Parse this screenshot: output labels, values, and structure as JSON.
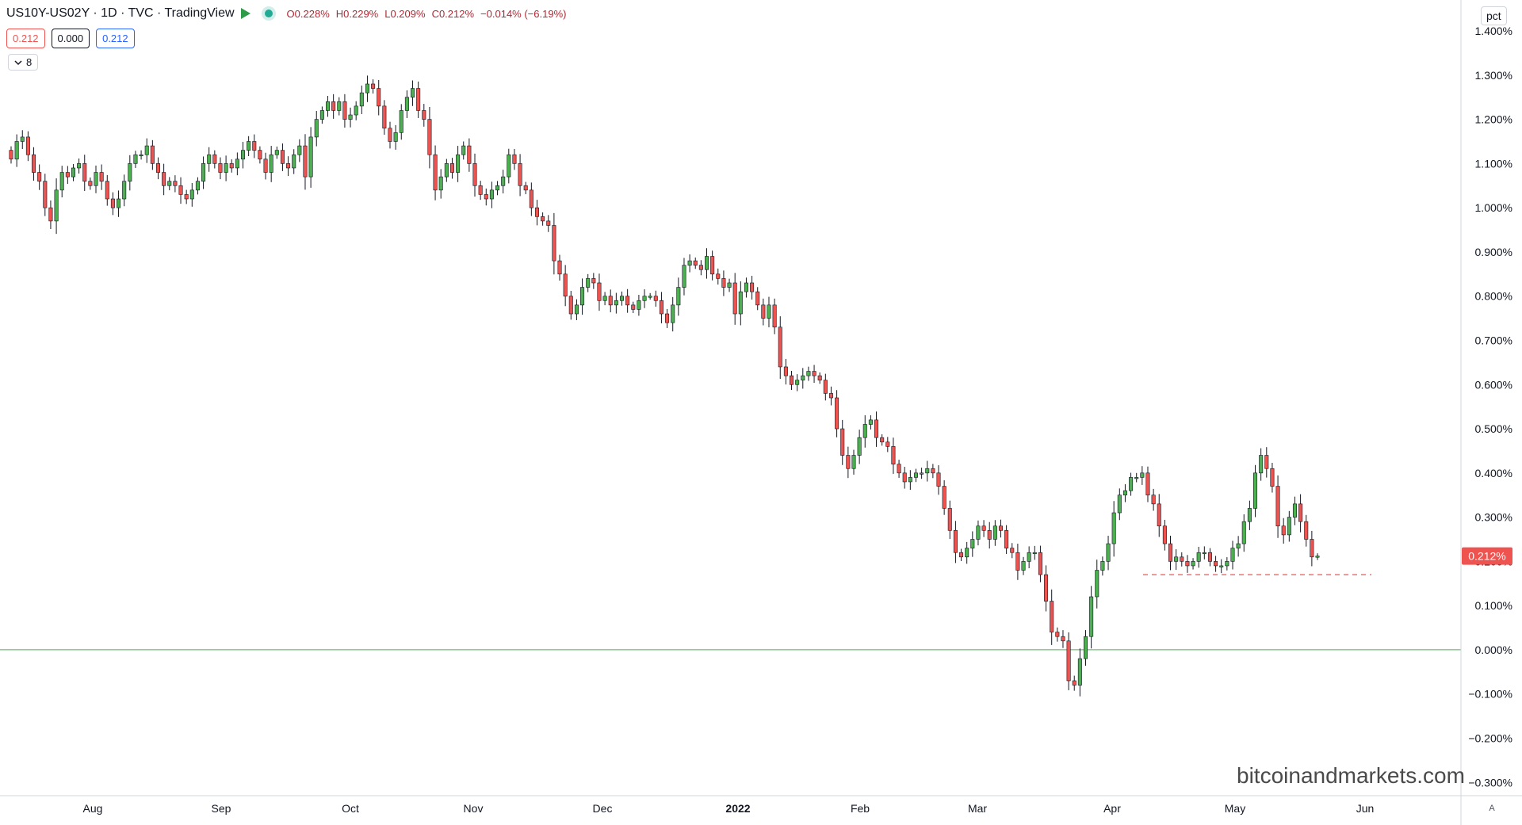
{
  "header": {
    "symbol": "US10Y-US02Y · 1D · TVC · TradingView",
    "open": "O0.228%",
    "high": "H0.229%",
    "low": "L0.209%",
    "close": "C0.212%",
    "change": "−0.014% (−6.19%)",
    "flag_icon": "flag-icon",
    "status_icon": "market-status-dot-icon"
  },
  "quote": {
    "bid": "0.212",
    "spread": "0.000",
    "ask": "0.212"
  },
  "indicators_toggle": {
    "icon": "chevron-down-icon",
    "count": "8"
  },
  "unit_label": "pct",
  "watermark": "bitcoinandmarkets.com",
  "auto_scale_label": "A",
  "chart_data": {
    "type": "candlestick",
    "title": "US10Y-US02Y · 1D · TVC · TradingView",
    "y_axis": {
      "ticks": [
        "1.400%",
        "1.300%",
        "1.200%",
        "1.100%",
        "1.000%",
        "0.900%",
        "0.800%",
        "0.700%",
        "0.600%",
        "0.500%",
        "0.400%",
        "0.300%",
        "0.200%",
        "0.100%",
        "0.000%",
        "−0.100%",
        "−0.200%",
        "−0.300%"
      ],
      "tick_values": [
        1.4,
        1.3,
        1.2,
        1.1,
        1.0,
        0.9,
        0.8,
        0.7,
        0.6,
        0.5,
        0.4,
        0.3,
        0.2,
        0.1,
        0.0,
        -0.1,
        -0.2,
        -0.3
      ],
      "range": [
        -0.33,
        1.47
      ],
      "position": "right"
    },
    "x_axis": {
      "labels": [
        "Aug",
        "Sep",
        "Oct",
        "Nov",
        "Dec",
        "2022",
        "Feb",
        "Mar",
        "Apr",
        "May",
        "Jun"
      ],
      "bold": [
        "2022"
      ]
    },
    "colors": {
      "up": "#26a69a",
      "up_body": "#4caf50",
      "down": "#ef5350",
      "zero_line": "#4caf50",
      "support_line": "#ef5350"
    },
    "last_price_label": "0.212%",
    "last_price": 0.212,
    "zero_line": 0.0,
    "support_line": {
      "value": 0.17,
      "style": "dashed"
    },
    "closes": [
      1.11,
      1.15,
      1.16,
      1.12,
      1.08,
      1.06,
      1.0,
      0.97,
      1.04,
      1.08,
      1.07,
      1.09,
      1.1,
      1.06,
      1.05,
      1.08,
      1.06,
      1.02,
      1.0,
      1.02,
      1.06,
      1.1,
      1.12,
      1.12,
      1.14,
      1.1,
      1.08,
      1.05,
      1.06,
      1.05,
      1.03,
      1.02,
      1.04,
      1.06,
      1.1,
      1.12,
      1.1,
      1.08,
      1.1,
      1.09,
      1.11,
      1.13,
      1.15,
      1.13,
      1.11,
      1.08,
      1.12,
      1.13,
      1.1,
      1.09,
      1.12,
      1.14,
      1.07,
      1.16,
      1.2,
      1.22,
      1.24,
      1.22,
      1.24,
      1.2,
      1.21,
      1.23,
      1.26,
      1.28,
      1.27,
      1.23,
      1.18,
      1.15,
      1.17,
      1.22,
      1.25,
      1.27,
      1.22,
      1.2,
      1.12,
      1.04,
      1.07,
      1.1,
      1.08,
      1.12,
      1.14,
      1.1,
      1.05,
      1.03,
      1.02,
      1.04,
      1.05,
      1.07,
      1.12,
      1.1,
      1.05,
      1.04,
      1.0,
      0.98,
      0.97,
      0.96,
      0.88,
      0.85,
      0.8,
      0.76,
      0.78,
      0.82,
      0.84,
      0.83,
      0.79,
      0.8,
      0.78,
      0.79,
      0.8,
      0.78,
      0.77,
      0.79,
      0.8,
      0.8,
      0.79,
      0.76,
      0.74,
      0.78,
      0.82,
      0.87,
      0.88,
      0.87,
      0.86,
      0.89,
      0.85,
      0.84,
      0.82,
      0.83,
      0.76,
      0.81,
      0.83,
      0.81,
      0.78,
      0.75,
      0.78,
      0.73,
      0.64,
      0.62,
      0.6,
      0.61,
      0.62,
      0.63,
      0.62,
      0.61,
      0.58,
      0.57,
      0.5,
      0.44,
      0.41,
      0.44,
      0.48,
      0.51,
      0.52,
      0.48,
      0.47,
      0.46,
      0.42,
      0.4,
      0.38,
      0.39,
      0.4,
      0.4,
      0.41,
      0.4,
      0.37,
      0.32,
      0.27,
      0.22,
      0.21,
      0.23,
      0.25,
      0.28,
      0.27,
      0.25,
      0.28,
      0.27,
      0.23,
      0.22,
      0.18,
      0.2,
      0.22,
      0.22,
      0.17,
      0.11,
      0.04,
      0.03,
      0.02,
      -0.07,
      -0.08,
      -0.02,
      0.03,
      0.12,
      0.18,
      0.2,
      0.24,
      0.31,
      0.35,
      0.36,
      0.39,
      0.39,
      0.4,
      0.35,
      0.33,
      0.28,
      0.24,
      0.2,
      0.21,
      0.2,
      0.19,
      0.2,
      0.22,
      0.22,
      0.2,
      0.19,
      0.19,
      0.2,
      0.23,
      0.24,
      0.29,
      0.32,
      0.4,
      0.44,
      0.41,
      0.37,
      0.28,
      0.26,
      0.3,
      0.33,
      0.29,
      0.25,
      0.21,
      0.212
    ]
  }
}
